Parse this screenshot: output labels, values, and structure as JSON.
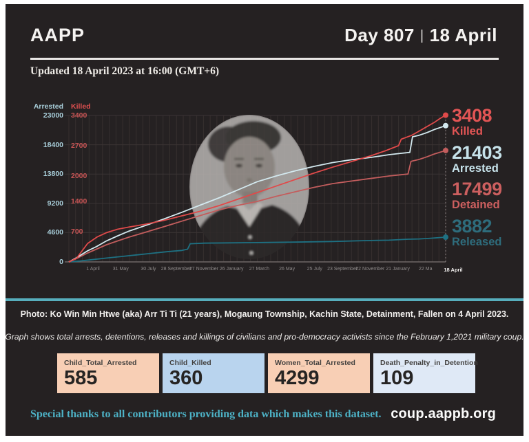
{
  "header": {
    "logo": "AAPP",
    "day": "Day 807",
    "separator": "|",
    "date": "18 April"
  },
  "updated": "Updated 18 April 2023 at 16:00 (GMT+6)",
  "chart_data": {
    "type": "line",
    "title": "",
    "x_range": [
      "1 February 2021",
      "18 April 2023"
    ],
    "x_ticks": [
      "1 April",
      "31 May",
      "30 July",
      "28 September",
      "27 November",
      "26 January",
      "27 March",
      "26 May",
      "25 July",
      "23 September",
      "22 November",
      "21 January",
      "22 Ma",
      "18 April"
    ],
    "axes": [
      {
        "name": "Arrested",
        "color": "#a9cfdb",
        "max": 23000,
        "ticks": [
          23000,
          18400,
          13800,
          9200,
          4600,
          0
        ]
      },
      {
        "name": "Killed",
        "color": "#dd4f4f",
        "max": 3400,
        "ticks": [
          3400,
          2700,
          2000,
          1400,
          700
        ]
      }
    ],
    "series": [
      {
        "name": "Released",
        "axis_max": 23000,
        "color": "#1e7183",
        "final": 3882,
        "points": [
          [
            0,
            0
          ],
          [
            0.03,
            150
          ],
          [
            0.06,
            350
          ],
          [
            0.1,
            600
          ],
          [
            0.14,
            850
          ],
          [
            0.18,
            1100
          ],
          [
            0.22,
            1350
          ],
          [
            0.26,
            1600
          ],
          [
            0.3,
            1800
          ],
          [
            0.315,
            2000
          ],
          [
            0.322,
            2850
          ],
          [
            0.36,
            2950
          ],
          [
            0.45,
            3000
          ],
          [
            0.5,
            3030
          ],
          [
            0.6,
            3110
          ],
          [
            0.7,
            3210
          ],
          [
            0.8,
            3360
          ],
          [
            0.85,
            3410
          ],
          [
            0.9,
            3560
          ],
          [
            0.93,
            3610
          ],
          [
            0.96,
            3710
          ],
          [
            1,
            3882
          ]
        ]
      },
      {
        "name": "Detained",
        "axis_max": 23000,
        "color": "#c35d5d",
        "final": 17499,
        "points": [
          [
            0,
            0
          ],
          [
            0.02,
            520
          ],
          [
            0.05,
            1400
          ],
          [
            0.073,
            2000
          ],
          [
            0.1,
            2700
          ],
          [
            0.13,
            3300
          ],
          [
            0.16,
            3900
          ],
          [
            0.2,
            4600
          ],
          [
            0.25,
            5500
          ],
          [
            0.3,
            6400
          ],
          [
            0.35,
            7300
          ],
          [
            0.4,
            8200
          ],
          [
            0.45,
            8900
          ],
          [
            0.5,
            9500
          ],
          [
            0.55,
            10300
          ],
          [
            0.6,
            11000
          ],
          [
            0.65,
            11700
          ],
          [
            0.7,
            12300
          ],
          [
            0.75,
            12700
          ],
          [
            0.8,
            13100
          ],
          [
            0.85,
            13500
          ],
          [
            0.9,
            13800
          ],
          [
            0.908,
            15800
          ],
          [
            0.93,
            16100
          ],
          [
            0.95,
            16500
          ],
          [
            0.97,
            16950
          ],
          [
            1,
            17499
          ]
        ]
      },
      {
        "name": "Arrested",
        "axis_max": 23000,
        "color": "#d3e9ef",
        "final": 21403,
        "points": [
          [
            0,
            0
          ],
          [
            0.02,
            650
          ],
          [
            0.05,
            1750
          ],
          [
            0.073,
            2400
          ],
          [
            0.1,
            3300
          ],
          [
            0.13,
            4100
          ],
          [
            0.16,
            4850
          ],
          [
            0.2,
            5650
          ],
          [
            0.25,
            6700
          ],
          [
            0.3,
            7800
          ],
          [
            0.35,
            8950
          ],
          [
            0.4,
            10100
          ],
          [
            0.45,
            11350
          ],
          [
            0.5,
            12600
          ],
          [
            0.55,
            13500
          ],
          [
            0.6,
            14300
          ],
          [
            0.65,
            15000
          ],
          [
            0.7,
            15600
          ],
          [
            0.75,
            16050
          ],
          [
            0.8,
            16400
          ],
          [
            0.85,
            16850
          ],
          [
            0.88,
            17050
          ],
          [
            0.905,
            17200
          ],
          [
            0.912,
            19650
          ],
          [
            0.93,
            19900
          ],
          [
            0.95,
            20300
          ],
          [
            0.97,
            20800
          ],
          [
            1,
            21403
          ]
        ]
      },
      {
        "name": "Killed",
        "axis_max": 3400,
        "color": "#e04a4a",
        "final": 3408,
        "points": [
          [
            0,
            0
          ],
          [
            0.02,
            80
          ],
          [
            0.05,
            430
          ],
          [
            0.075,
            580
          ],
          [
            0.1,
            680
          ],
          [
            0.13,
            760
          ],
          [
            0.16,
            810
          ],
          [
            0.2,
            870
          ],
          [
            0.25,
            960
          ],
          [
            0.3,
            1070
          ],
          [
            0.35,
            1180
          ],
          [
            0.4,
            1310
          ],
          [
            0.45,
            1460
          ],
          [
            0.5,
            1610
          ],
          [
            0.55,
            1760
          ],
          [
            0.6,
            1910
          ],
          [
            0.65,
            2060
          ],
          [
            0.7,
            2200
          ],
          [
            0.75,
            2330
          ],
          [
            0.8,
            2460
          ],
          [
            0.84,
            2580
          ],
          [
            0.875,
            2700
          ],
          [
            0.882,
            2850
          ],
          [
            0.91,
            2940
          ],
          [
            0.93,
            3040
          ],
          [
            0.95,
            3140
          ],
          [
            0.97,
            3240
          ],
          [
            0.985,
            3330
          ],
          [
            1,
            3408
          ]
        ]
      }
    ],
    "end_labels": [
      {
        "value": "3408",
        "label": "Killed",
        "color": "#e35555"
      },
      {
        "value": "21403",
        "label": "Arrested",
        "color": "#c6e2ea"
      },
      {
        "value": "17499",
        "label": "Detained",
        "color": "#cc5f5f"
      },
      {
        "value": "3882",
        "label": "Released",
        "color": "#2e6c7c"
      }
    ],
    "grid": true,
    "legend_position": "right"
  },
  "photo_caption": "Photo: Ko Win Min Htwe (aka) Arr Ti Ti (21 years), Mogaung Township, Kachin State, Detainment, Fallen on 4 April 2023.",
  "graph_caption": "Graph shows total arrests, detentions, releases and killings of civilians and pro-democracy activists since the February 1,2021 military coup.",
  "stats": {
    "items": [
      {
        "label": "Child_Total_Arrested",
        "value": "585",
        "bg": "#f8cfb5"
      },
      {
        "label": "Child_Killed",
        "value": "360",
        "bg": "#b9d4ee"
      },
      {
        "label": "Women_Total_Arrested",
        "value": "4299",
        "bg": "#f8cfb5"
      },
      {
        "label": "Death_Penalty_in_Detention",
        "value": "109",
        "bg": "#dfe9f6"
      }
    ]
  },
  "footer": {
    "thanks": "Special thanks to all contributors providing data which makes this dataset.",
    "site": "coup.aappb.org"
  },
  "colors": {
    "card_bg": "#252122",
    "divider": "#57aebd",
    "gridline": "#37302f"
  }
}
